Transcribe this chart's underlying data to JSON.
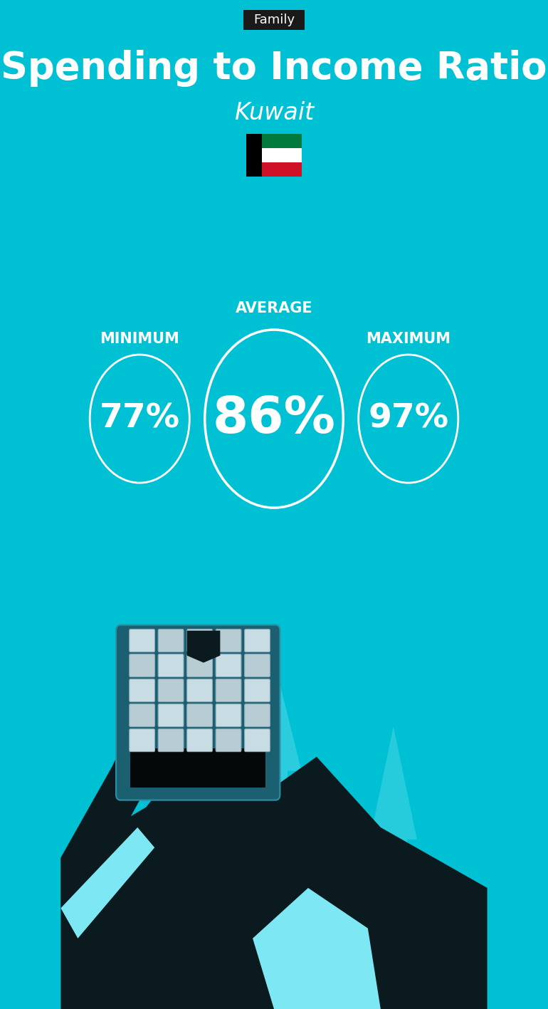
{
  "bg_color": "#00C1D4",
  "title_tag": "Family",
  "title_tag_bg": "#1a1a1a",
  "title_tag_color": "#ffffff",
  "main_title": "Spending to Income Ratio",
  "subtitle": "Kuwait",
  "min_label": "MINIMUM",
  "avg_label": "AVERAGE",
  "max_label": "MAXIMUM",
  "min_value": "77%",
  "avg_value": "86%",
  "max_value": "97%",
  "circle_color": "#ffffff",
  "text_color": "#ffffff",
  "flag_colors_green": "#007A3D",
  "flag_colors_white": "#FFFFFF",
  "flag_colors_red": "#CE1126",
  "flag_colors_black": "#000000",
  "fig_width": 7.7,
  "fig_height": 14.17,
  "dpi": 100
}
